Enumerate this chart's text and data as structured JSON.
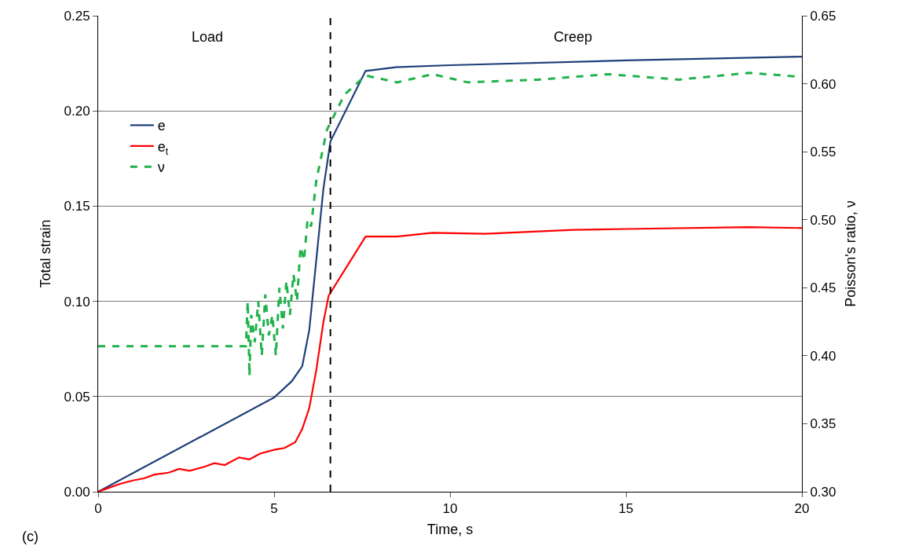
{
  "chart_data": {
    "type": "line",
    "xlabel": "Time, s",
    "ylabel": "Total strain",
    "y2label": "Poisson's ratio, ν",
    "xlim": [
      0,
      20
    ],
    "xticks": [
      0,
      5,
      10,
      15,
      20
    ],
    "ylim": [
      0,
      0.25
    ],
    "yticks": [
      {
        "value": 0,
        "label": "0.00"
      },
      {
        "value": 0.05,
        "label": "0.05"
      },
      {
        "value": 0.1,
        "label": "0.10"
      },
      {
        "value": 0.15,
        "label": "0.15"
      },
      {
        "value": 0.2,
        "label": "0.20"
      },
      {
        "value": 0.25,
        "label": "0.25"
      }
    ],
    "y2lim": [
      0.3,
      0.65
    ],
    "y2ticks": [
      {
        "value": 0.3,
        "label": "0.30"
      },
      {
        "value": 0.35,
        "label": "0.35"
      },
      {
        "value": 0.4,
        "label": "0.40"
      },
      {
        "value": 0.45,
        "label": "0.45"
      },
      {
        "value": 0.5,
        "label": "0.50"
      },
      {
        "value": 0.55,
        "label": "0.55"
      },
      {
        "value": 0.6,
        "label": "0.60"
      },
      {
        "value": 0.65,
        "label": "0.65"
      }
    ],
    "grid": "y",
    "legend": "top left",
    "marker": "none",
    "series": [
      {
        "name": "e",
        "color": "#1f3f7a",
        "line_style": "solid",
        "x": [
          0,
          5,
          5.5,
          5.8,
          6.0,
          6.2,
          6.4,
          6.6,
          7.6,
          8.5,
          10,
          15,
          20
        ],
        "values": [
          0,
          0.0495,
          0.058,
          0.066,
          0.085,
          0.122,
          0.159,
          0.184,
          0.221,
          0.223,
          0.224,
          0.2265,
          0.2285
        ]
      },
      {
        "name": "e$_{t}$",
        "color": "#ff0000",
        "line_style": "solid",
        "x": [
          0,
          0.3,
          0.6,
          1,
          1.3,
          1.6,
          2,
          2.3,
          2.6,
          3,
          3.3,
          3.6,
          4,
          4.3,
          4.6,
          5,
          5.3,
          5.6,
          5.8,
          6.0,
          6.2,
          6.4,
          6.55,
          7.6,
          8.5,
          9.5,
          11,
          13.5,
          15,
          18.5,
          20
        ],
        "values": [
          0,
          0.002,
          0.004,
          0.006,
          0.007,
          0.009,
          0.01,
          0.012,
          0.011,
          0.013,
          0.015,
          0.014,
          0.018,
          0.017,
          0.02,
          0.022,
          0.023,
          0.026,
          0.033,
          0.044,
          0.064,
          0.089,
          0.103,
          0.134,
          0.134,
          0.136,
          0.1355,
          0.1375,
          0.138,
          0.139,
          0.1385
        ]
      },
      {
        "name": "ν",
        "color": "#22b24c",
        "line_style": "dashed",
        "axis": "y2",
        "x": [
          0,
          4.2,
          4.25,
          4.3,
          4.35,
          4.45,
          4.55,
          4.65,
          4.75,
          4.85,
          4.95,
          5.05,
          5.15,
          5.25,
          5.35,
          5.45,
          5.55,
          5.65,
          5.75,
          5.85,
          5.95,
          6.05,
          6.2,
          6.5,
          7.0,
          7.6,
          8.5,
          9.5,
          10.5,
          12.5,
          14.5,
          16.5,
          18.5,
          20
        ],
        "values": [
          0.407,
          0.407,
          0.44,
          0.385,
          0.43,
          0.41,
          0.44,
          0.4,
          0.445,
          0.415,
          0.43,
          0.4,
          0.45,
          0.42,
          0.455,
          0.43,
          0.46,
          0.44,
          0.48,
          0.47,
          0.5,
          0.495,
          0.529,
          0.566,
          0.592,
          0.606,
          0.601,
          0.607,
          0.601,
          0.603,
          0.607,
          0.603,
          0.608,
          0.605
        ]
      }
    ],
    "ref_lines": [
      {
        "axis": "x",
        "value": 6.6,
        "color": "#000000",
        "line_style": "dashed"
      }
    ],
    "annotations": [
      "Load",
      "Creep",
      "(c)"
    ]
  }
}
